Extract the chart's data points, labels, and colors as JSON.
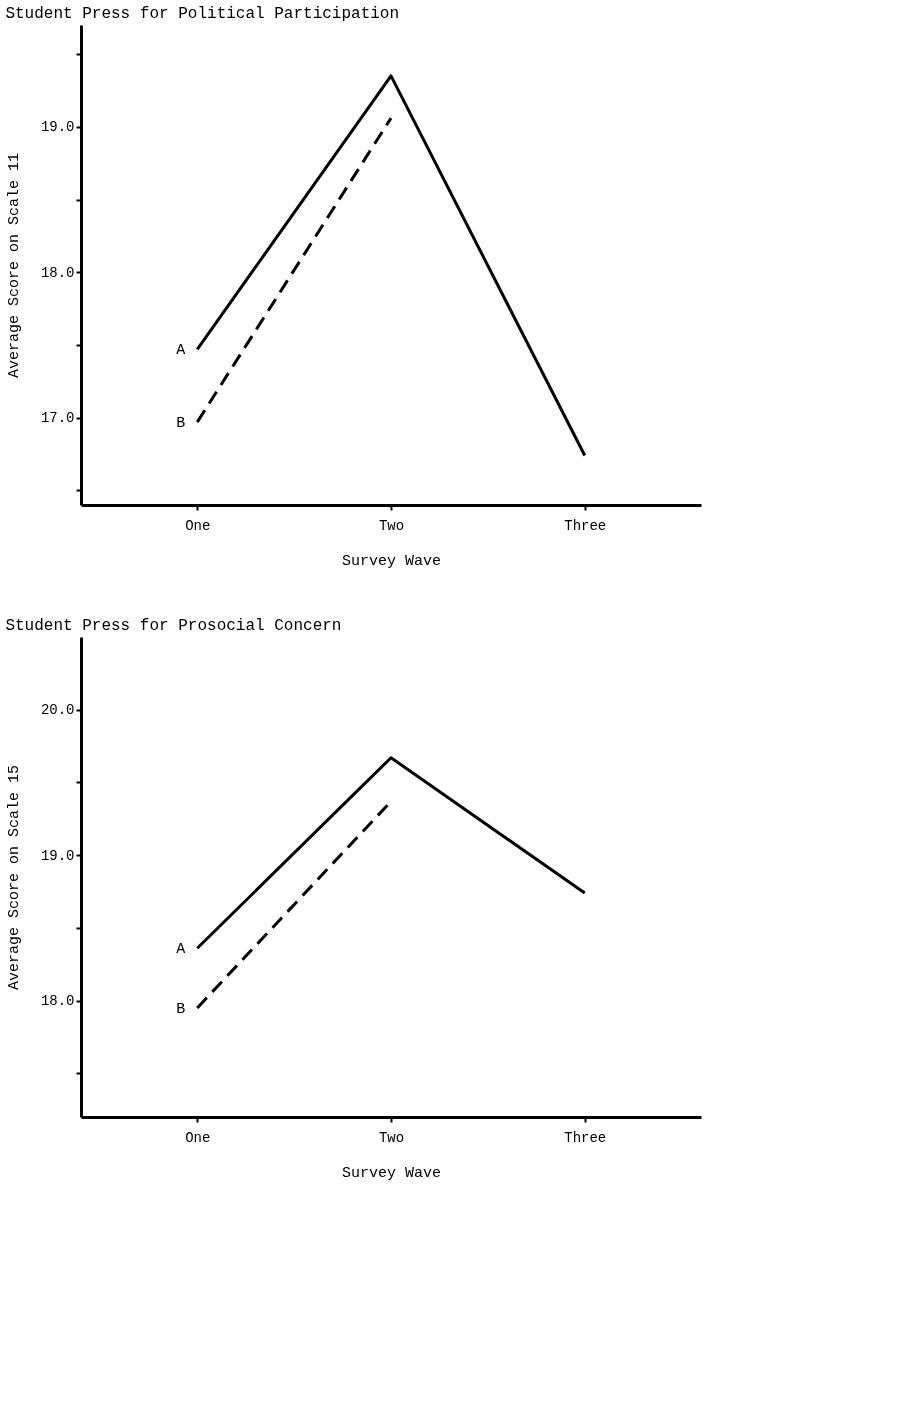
{
  "chart_data": [
    {
      "type": "line",
      "title": "Student Press for Political Participation",
      "xlabel": "Survey Wave",
      "ylabel": "Average Score on Scale 11",
      "categories": [
        "One",
        "Two",
        "Three"
      ],
      "ylim": [
        16.4,
        19.7
      ],
      "yticks": [
        {
          "value": 16.5,
          "label": null
        },
        {
          "value": 17.0,
          "label": "17.0"
        },
        {
          "value": 17.5,
          "label": null
        },
        {
          "value": 18.0,
          "label": "18.0"
        },
        {
          "value": 18.5,
          "label": null
        },
        {
          "value": 19.0,
          "label": "19.0"
        },
        {
          "value": 19.5,
          "label": null
        }
      ],
      "series": [
        {
          "name": "A",
          "color": "#000000",
          "line_style": "solid",
          "values": [
            17.47,
            19.35,
            16.74
          ]
        },
        {
          "name": "B",
          "color": "#000000",
          "line_style": "dashed",
          "values": [
            16.97,
            19.06,
            null
          ]
        }
      ]
    },
    {
      "type": "line",
      "title": "Student Press for Prosocial Concern",
      "xlabel": "Survey Wave",
      "ylabel": "Average Score on Scale 15",
      "categories": [
        "One",
        "Two",
        "Three"
      ],
      "ylim": [
        17.2,
        20.5
      ],
      "yticks": [
        {
          "value": 17.5,
          "label": null
        },
        {
          "value": 18.0,
          "label": "18.0"
        },
        {
          "value": 18.5,
          "label": null
        },
        {
          "value": 19.0,
          "label": "19.0"
        },
        {
          "value": 19.5,
          "label": null
        },
        {
          "value": 20.0,
          "label": "20.0"
        }
      ],
      "series": [
        {
          "name": "A",
          "color": "#000000",
          "line_style": "solid",
          "values": [
            18.36,
            19.67,
            18.74
          ]
        },
        {
          "name": "B",
          "color": "#000000",
          "line_style": "dashed",
          "values": [
            17.95,
            19.37,
            null
          ]
        }
      ]
    }
  ]
}
